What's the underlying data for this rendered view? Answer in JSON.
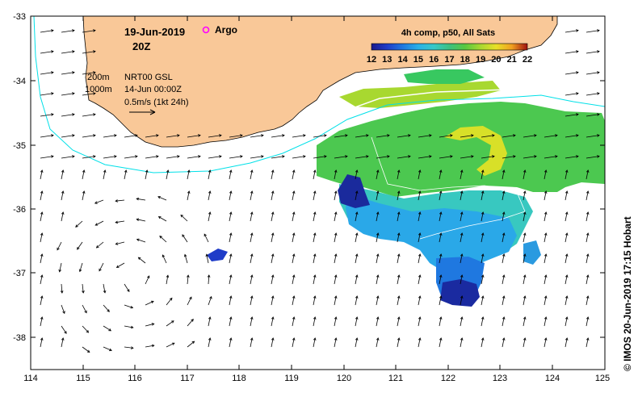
{
  "map": {
    "date": "19-Jun-2019",
    "time": "20Z",
    "argo_label": "Argo",
    "colorbar_title": "4h comp, p50, All Sats",
    "colorbar_ticks": [
      "12",
      "13",
      "14",
      "15",
      "16",
      "17",
      "18",
      "19",
      "20",
      "21",
      "22"
    ],
    "contour_labels": [
      "200m",
      "1000m"
    ],
    "current_product": "NRT00 GSL",
    "current_date": "14-Jun 00:00Z",
    "scale_label": "0.5m/s (1kt 24h)",
    "credit": "© IMOS 20-Jun-2019 17:15 Hobart",
    "x_ticks": [
      "114",
      "115",
      "116",
      "117",
      "118",
      "119",
      "120",
      "121",
      "122",
      "123",
      "124",
      "125"
    ],
    "y_ticks": [
      "-33",
      "-34",
      "-35",
      "-36",
      "-37",
      "-38"
    ],
    "colors": {
      "land": "#f9c898",
      "bathy_200": "#ffffff",
      "bathy_1000": "#00e0e8",
      "argo": "#ff00ff",
      "colorbar": [
        "#1a1a8c",
        "#1f3cc8",
        "#1f78e0",
        "#2ab0e8",
        "#38c8c8",
        "#3cc080",
        "#58c840",
        "#a8d830",
        "#e8e028",
        "#f0a020",
        "#e05018",
        "#a01010"
      ]
    },
    "sst_grid_note": ""
  }
}
